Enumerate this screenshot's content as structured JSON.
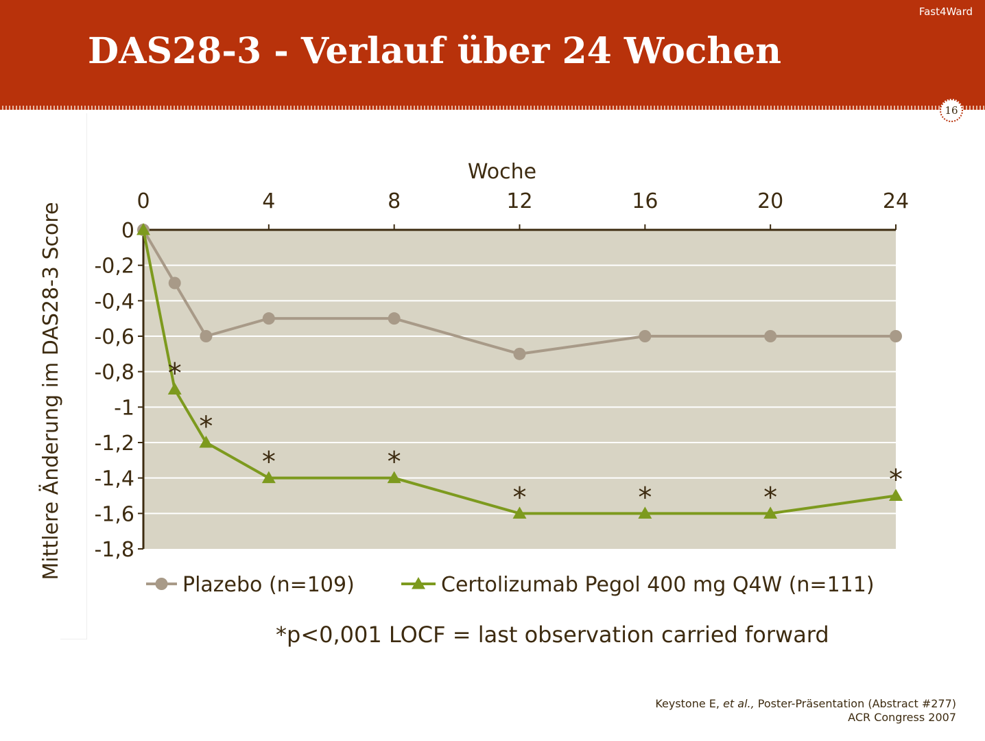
{
  "header": {
    "brand": "Fast4Ward",
    "title": "DAS28-3 - Verlauf über 24 Wochen",
    "page_number": "16",
    "background_color": "#b8320b"
  },
  "chart_data": {
    "type": "line",
    "title": "",
    "xlabel": "Woche",
    "ylabel": "Mittlere Änderung im DAS28-3 Score",
    "x_ticks": [
      0,
      4,
      8,
      12,
      16,
      20,
      24
    ],
    "x_tick_labels": [
      "0",
      "4",
      "8",
      "12",
      "16",
      "20",
      "24"
    ],
    "xlim": [
      0,
      24
    ],
    "y_ticks": [
      0,
      -0.2,
      -0.4,
      -0.6,
      -0.8,
      -1,
      -1.2,
      -1.4,
      -1.6,
      -1.8
    ],
    "y_tick_labels": [
      "0",
      "-0,2",
      "-0,4",
      "-0,6",
      "-0,8",
      "-1",
      "-1,2",
      "-1,4",
      "-1,6",
      "-1,8"
    ],
    "ylim": [
      -1.8,
      0
    ],
    "x_axis_position": "top",
    "grid": true,
    "plot_background": "#d8d4c4",
    "legend_position": "bottom",
    "series": [
      {
        "name": "Plazebo (n=109)",
        "color": "#a89a88",
        "marker": "circle",
        "x": [
          0,
          1,
          2,
          4,
          8,
          12,
          16,
          20,
          24
        ],
        "values": [
          0,
          -0.3,
          -0.6,
          -0.5,
          -0.5,
          -0.7,
          -0.6,
          -0.6,
          -0.6
        ]
      },
      {
        "name": "Certolizumab Pegol 400 mg Q4W (n=111)",
        "color": "#7d9a1e",
        "marker": "triangle",
        "x": [
          0,
          1,
          2,
          4,
          8,
          12,
          16,
          20,
          24
        ],
        "values": [
          0,
          -0.9,
          -1.2,
          -1.4,
          -1.4,
          -1.6,
          -1.6,
          -1.6,
          -1.5
        ]
      }
    ],
    "significance_marker": "*",
    "significant_x": [
      1,
      2,
      4,
      8,
      12,
      16,
      20,
      24
    ]
  },
  "footnote": "*p<0,001 LOCF = last observation carried forward",
  "source": {
    "author": "Keystone E, ",
    "etal": "et al.,",
    "rest": " Poster-Präsentation (Abstract #277)",
    "line2": "ACR Congress 2007"
  }
}
